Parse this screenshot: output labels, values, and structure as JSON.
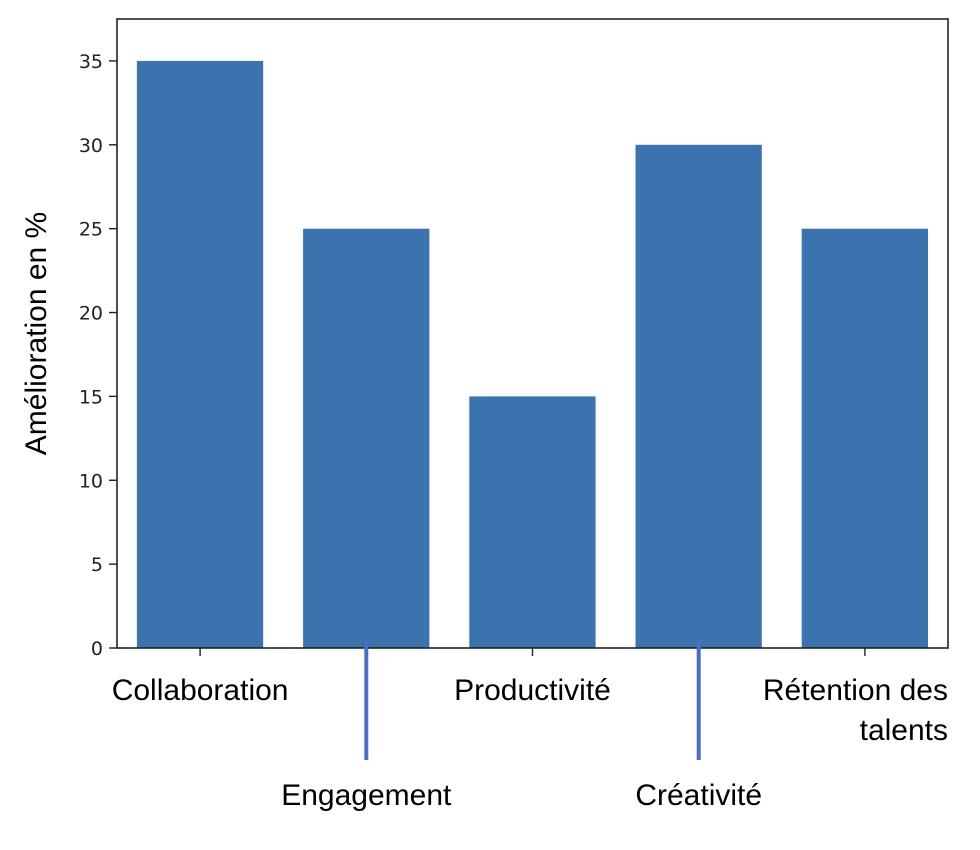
{
  "chart_data": {
    "type": "bar",
    "categories": [
      "Collaboration",
      "Engagement",
      "Productivité",
      "Créativité",
      "Rétention des talents"
    ],
    "category_lines": [
      [
        "Collaboration"
      ],
      [
        "Engagement"
      ],
      [
        "Productivité"
      ],
      [
        "Créativité"
      ],
      [
        "Rétention des",
        "talents"
      ]
    ],
    "values": [
      35,
      25,
      15,
      30,
      25
    ],
    "title": "",
    "xlabel": "",
    "ylabel": "Amélioration en %",
    "ylim": [
      0,
      37.5
    ],
    "yticks": [
      0,
      5,
      10,
      15,
      20,
      25,
      30,
      35
    ],
    "grid": false,
    "legend": "none",
    "colors": {
      "bar": "#3b73af",
      "axes": "#222222",
      "leader_line": "#4a6fc7",
      "background": "#ffffff"
    }
  }
}
